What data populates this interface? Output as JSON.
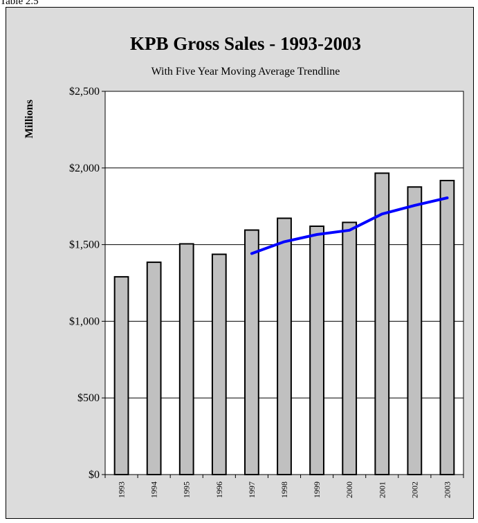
{
  "caption": "Table 2.5",
  "chart_data": {
    "type": "bar",
    "title": "KPB Gross Sales - 1993-2003",
    "subtitle": "With Five Year Moving Average Trendline",
    "ylabel": "Millions",
    "xlabel": "",
    "ylim": [
      0,
      2500
    ],
    "yticks": [
      {
        "value": 0,
        "label": "$0"
      },
      {
        "value": 500,
        "label": "$500"
      },
      {
        "value": 1000,
        "label": "$1,000"
      },
      {
        "value": 1500,
        "label": "$1,500"
      },
      {
        "value": 2000,
        "label": "$2,000"
      },
      {
        "value": 2500,
        "label": "$2,500"
      }
    ],
    "categories": [
      "1993",
      "1994",
      "1995",
      "1996",
      "1997",
      "1998",
      "1999",
      "2000",
      "2001",
      "2002",
      "2003"
    ],
    "values": [
      1290,
      1385,
      1505,
      1437,
      1595,
      1672,
      1620,
      1645,
      1966,
      1876,
      1918
    ],
    "moving_average": [
      null,
      null,
      null,
      null,
      1442,
      1519,
      1566,
      1594,
      1700,
      1756,
      1805
    ],
    "grid": true,
    "colors": {
      "background": "#dcdcdc",
      "plot": "#ffffff",
      "bar_fill": "#c0c0c0",
      "bar_stroke": "#000000",
      "trendline": "#0000ff"
    }
  }
}
